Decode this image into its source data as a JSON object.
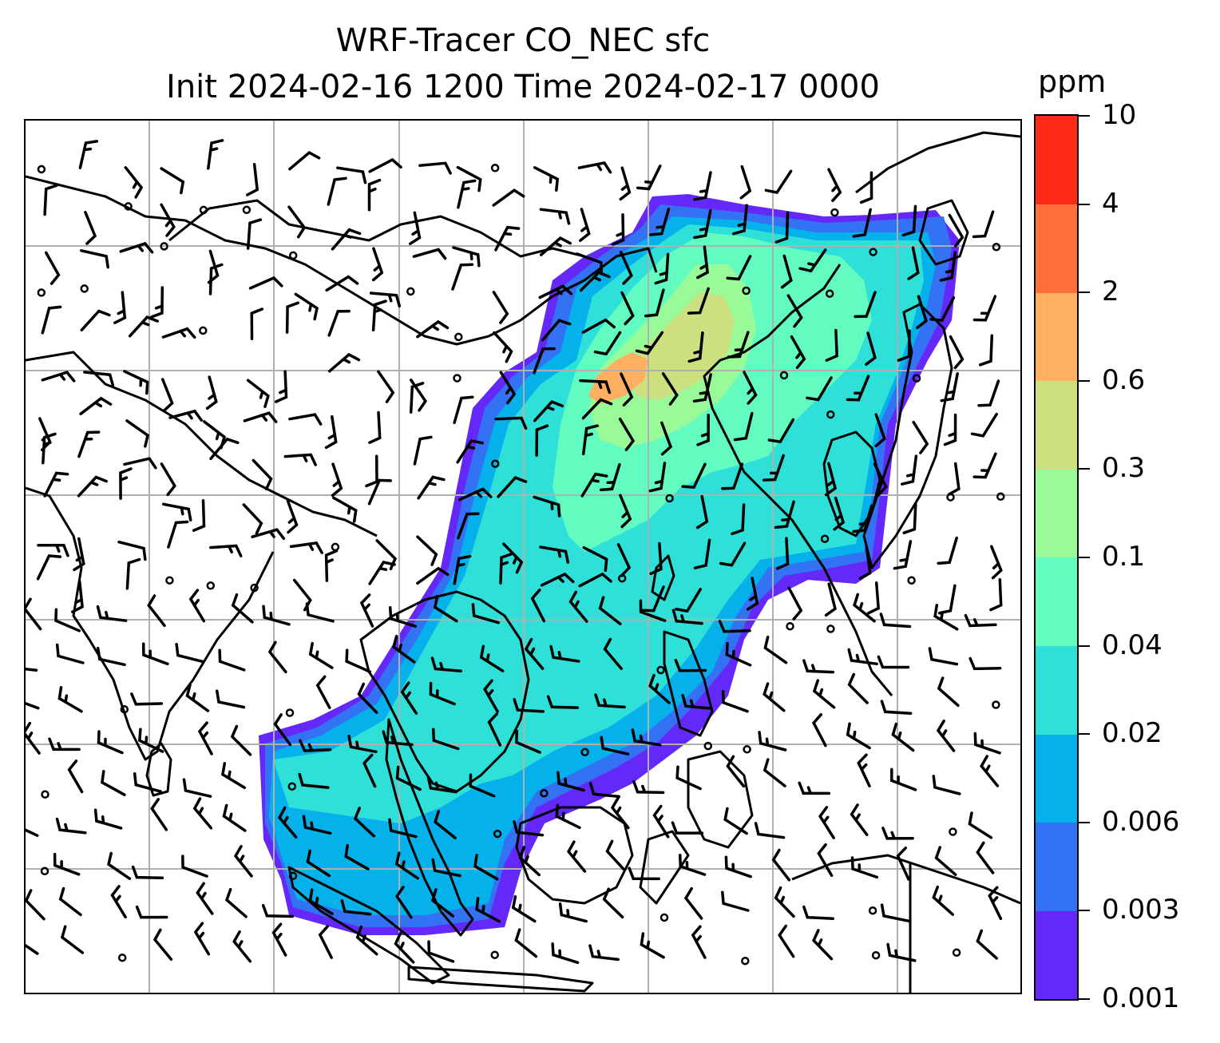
{
  "title": {
    "line1": "WRF-Tracer CO_NEC sfc",
    "line2": "Init 2024-02-16 1200 Time 2024-02-17 0000"
  },
  "colorbar": {
    "units": "ppm",
    "levels": [
      "0.001",
      "0.003",
      "0.006",
      "0.02",
      "0.04",
      "0.1",
      "0.3",
      "0.6",
      "2",
      "4",
      "10"
    ],
    "colors": [
      "#6428f8",
      "#3472f4",
      "#05b1ea",
      "#2fe0d8",
      "#62fcc0",
      "#98fb98",
      "#cde080",
      "#feaf62",
      "#ff6f3c",
      "#ff2b17"
    ]
  },
  "map": {
    "projection": "regional (East / Southeast Asia)",
    "field": "CO_NEC surface tracer concentration",
    "overlay": "wind barbs",
    "gridlines": true,
    "coastlines": true,
    "borders": true
  }
}
